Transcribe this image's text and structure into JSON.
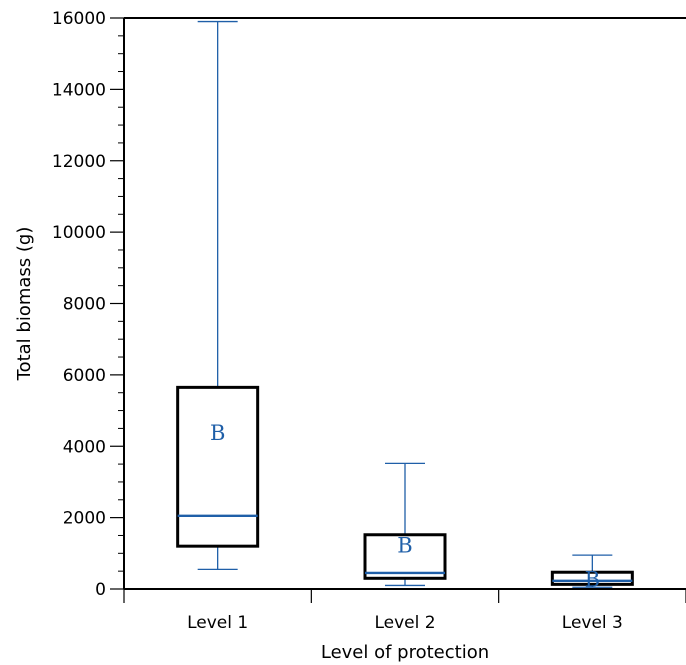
{
  "chart_data": {
    "type": "box",
    "xlabel": "Level of protection",
    "ylabel": "Total biomass (g)",
    "ylim": [
      0,
      16000
    ],
    "yticks": [
      0,
      2000,
      4000,
      6000,
      8000,
      10000,
      12000,
      14000,
      16000
    ],
    "ytick_labels": [
      "0",
      "2000",
      "4000",
      "6000",
      "8000",
      "10000",
      "12000",
      "14000",
      "16000"
    ],
    "grid": false,
    "colors": {
      "box": "#000000",
      "whisker": "#1f5fa8",
      "median": "#1f5fa8",
      "letter": "#1f5fa8"
    },
    "categories": [
      "Level 1",
      "Level 2",
      "Level 3"
    ],
    "boxes": [
      {
        "category": "Level 1",
        "whisker_low": 550,
        "q1": 1200,
        "median": 2050,
        "q3": 5650,
        "whisker_high": 15900,
        "group_letter": "B",
        "letter_y": 4400
      },
      {
        "category": "Level 2",
        "whisker_low": 100,
        "q1": 300,
        "median": 450,
        "q3": 1520,
        "whisker_high": 3520,
        "group_letter": "B",
        "letter_y": 1250
      },
      {
        "category": "Level 3",
        "whisker_low": 50,
        "q1": 130,
        "median": 230,
        "q3": 470,
        "whisker_high": 950,
        "group_letter": "B",
        "letter_y": 300
      }
    ]
  }
}
